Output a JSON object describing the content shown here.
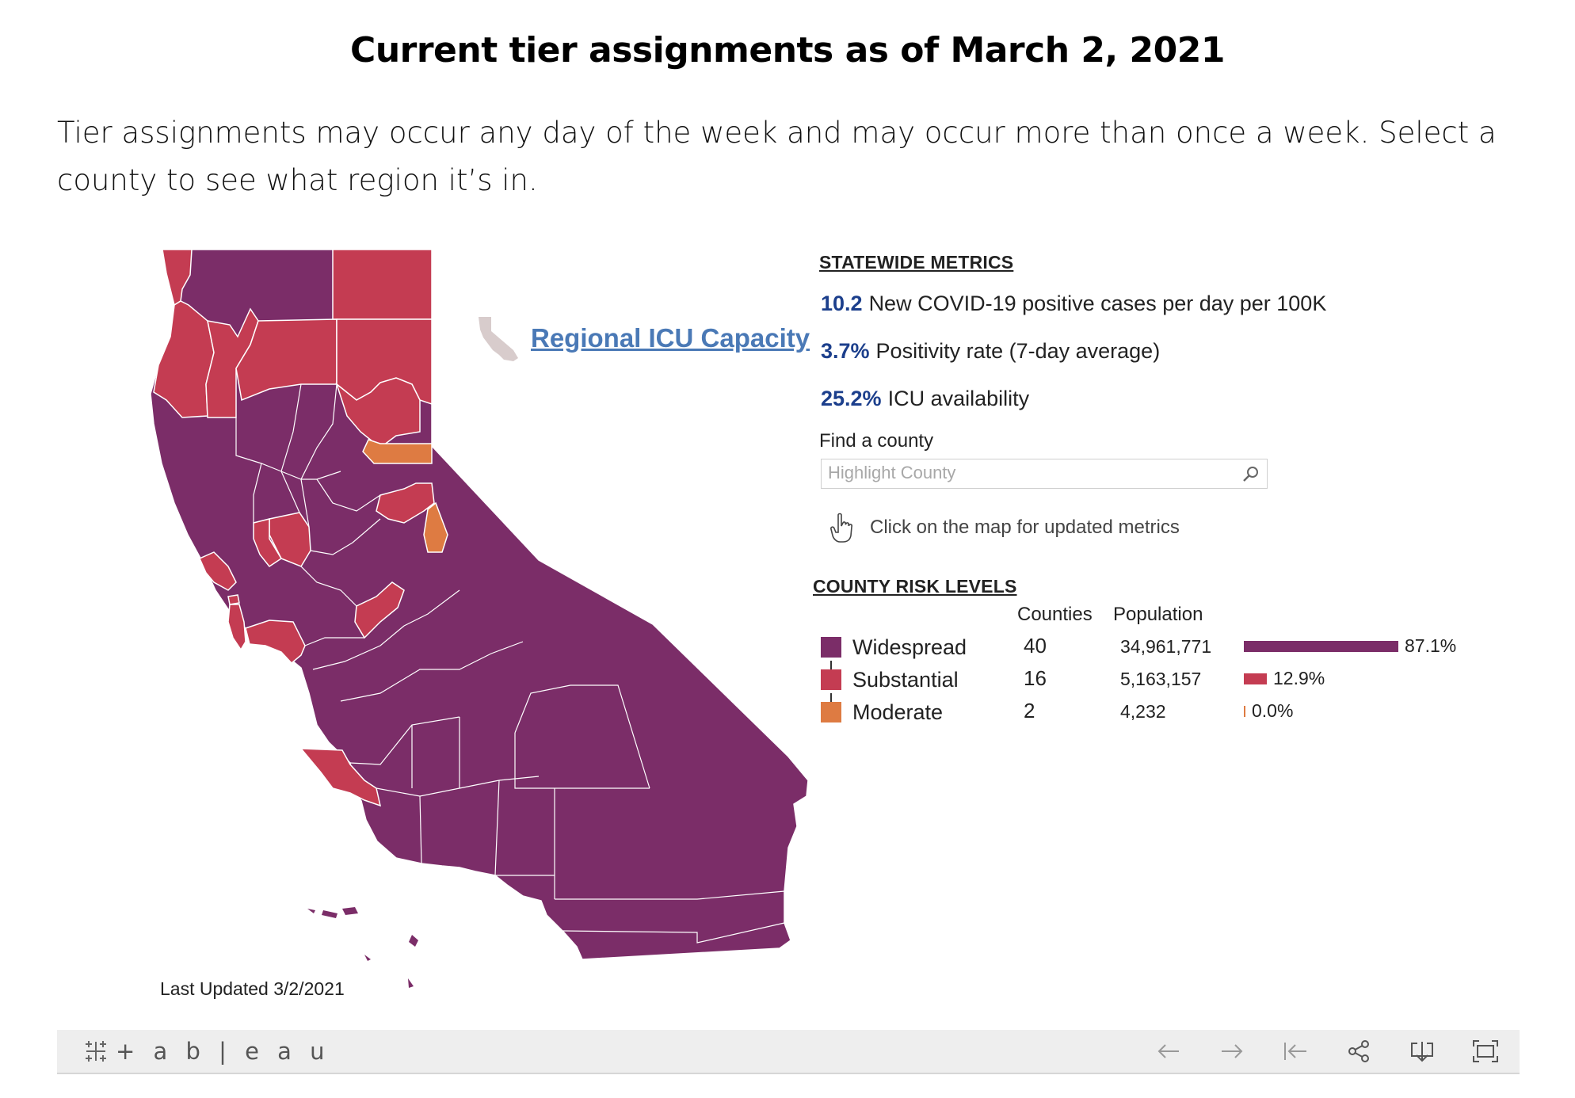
{
  "header": {
    "title": "Current tier assignments as of March 2, 2021",
    "intro": "Tier assignments may occur any day of the week and may occur more than once a week. Select a county to see what region it’s in."
  },
  "colors": {
    "widespread": "#7b2d68",
    "substantial": "#c43c52",
    "moderate": "#de7b42",
    "metric_value": "#1c3f8c",
    "link": "#4a79b6"
  },
  "map": {
    "icu_link_label": "Regional ICU Capacity",
    "last_updated": "Last Updated 3/2/2021"
  },
  "statewide": {
    "heading": "STATEWIDE METRICS",
    "metrics": [
      {
        "value": "10.2",
        "label": "New COVID-19 positive cases per day per 100K"
      },
      {
        "value": "3.7%",
        "label": "Positivity rate (7-day average)"
      },
      {
        "value": "25.2%",
        "label": "ICU availability"
      }
    ]
  },
  "search": {
    "label": "Find a county",
    "placeholder": "Highlight County"
  },
  "hint": "Click on the map for updated metrics",
  "risk": {
    "heading": "COUNTY RISK LEVELS",
    "col_counties": "Counties",
    "col_population": "Population",
    "rows": [
      {
        "label": "Widespread",
        "counties": "40",
        "population": "34,961,771",
        "share": 0.871,
        "pct_label": "87.1%"
      },
      {
        "label": "Substantial",
        "counties": "16",
        "population": "5,163,157",
        "share": 0.129,
        "pct_label": "12.9%"
      },
      {
        "label": "Moderate",
        "counties": "2",
        "population": "4,232",
        "share": 0.0,
        "pct_label": "0.0%"
      }
    ]
  },
  "toolbar": {
    "logo": "+ a b | e a u",
    "icons": [
      "undo-icon",
      "redo-icon",
      "revert-icon",
      "share-icon",
      "download-icon",
      "fullscreen-icon"
    ]
  }
}
